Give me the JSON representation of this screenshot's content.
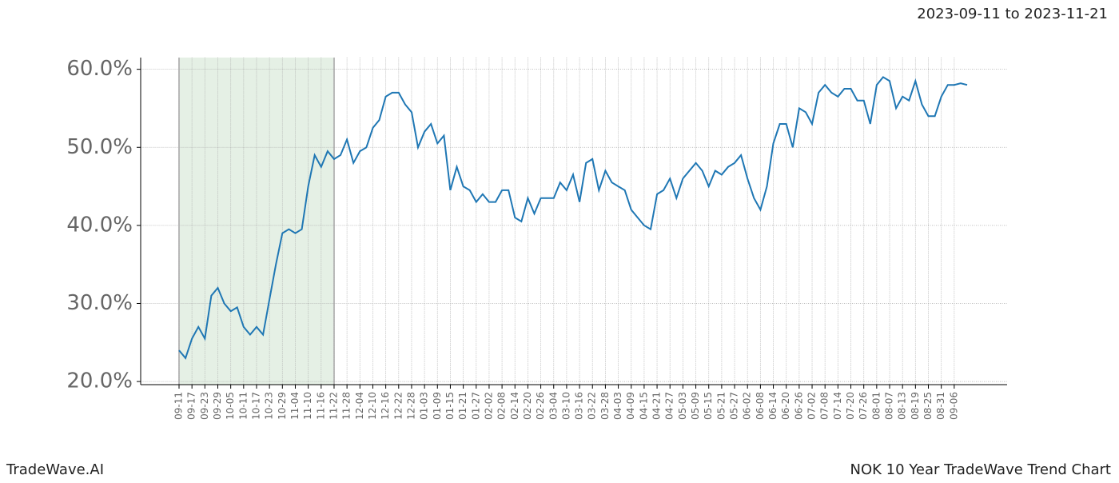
{
  "chart_data": {
    "type": "line",
    "title": "NOK 10 Year TradeWave Trend Chart",
    "subtitle": "2023-09-11 to 2023-11-21",
    "brand": "TradeWave.AI",
    "categories": [
      "09-11",
      null,
      "09-17",
      null,
      "09-23",
      null,
      "09-29",
      null,
      "10-05",
      null,
      "10-11",
      null,
      "10-17",
      null,
      "10-23",
      null,
      "10-29",
      null,
      "11-04",
      null,
      "11-10",
      null,
      "11-16",
      null,
      "11-22",
      null,
      "11-28",
      null,
      "12-04",
      null,
      "12-10",
      null,
      "12-16",
      null,
      "12-22",
      null,
      "12-28",
      null,
      "01-03",
      null,
      "01-09",
      null,
      "01-15",
      null,
      "01-21",
      null,
      "01-27",
      null,
      "02-02",
      null,
      "02-08",
      null,
      "02-14",
      null,
      "02-20",
      null,
      "02-26",
      null,
      "03-04",
      null,
      "03-10",
      null,
      "03-16",
      null,
      "03-22",
      null,
      "03-28",
      null,
      "04-03",
      null,
      "04-09",
      null,
      "04-15",
      null,
      "04-21",
      null,
      "04-27",
      null,
      "05-03",
      null,
      "05-09",
      null,
      "05-15",
      null,
      "05-21",
      null,
      "05-27",
      null,
      "06-02",
      null,
      "06-08",
      null,
      "06-14",
      null,
      "06-20",
      null,
      "06-26",
      null,
      "07-02",
      null,
      "07-08",
      null,
      "07-14",
      null,
      "07-20",
      null,
      "07-26",
      null,
      "08-01",
      null,
      "08-07",
      null,
      "08-13",
      null,
      "08-19",
      null,
      "08-25",
      null,
      "08-31",
      null,
      "09-06",
      null,
      null
    ],
    "series": [
      {
        "name": "NOK",
        "color": "#1f77b4",
        "values": [
          24,
          23,
          25.5,
          27,
          25.5,
          31,
          32,
          30,
          29,
          29.5,
          27,
          26,
          27,
          26,
          30.5,
          35,
          39,
          39.5,
          39,
          39.5,
          45,
          49,
          47.5,
          49.5,
          48.5,
          49,
          51,
          48,
          49.5,
          50,
          52.5,
          53.5,
          56.5,
          57,
          57,
          55.5,
          54.5,
          50,
          52,
          53,
          50.5,
          51.5,
          44.5,
          47.5,
          45,
          44.5,
          43,
          44,
          43,
          43,
          44.5,
          44.5,
          41,
          40.5,
          43.5,
          41.5,
          43.5,
          43.5,
          43.5,
          45.5,
          44.5,
          46.5,
          43,
          48,
          48.5,
          44.5,
          47,
          45.5,
          45,
          44.5,
          42,
          41,
          40,
          39.5,
          44,
          44.5,
          46,
          43.5,
          46,
          47,
          48,
          47,
          45,
          47,
          46.5,
          47.5,
          48,
          49,
          46,
          43.5,
          42,
          45,
          50.5,
          53,
          53,
          50,
          55,
          54.5,
          53,
          57,
          58,
          57,
          56.5,
          57.5,
          57.5,
          56,
          56,
          53,
          58,
          59,
          58.5,
          55,
          56.5,
          56,
          58.5,
          55.5,
          54,
          54,
          56.5,
          58,
          58,
          58.2,
          58
        ]
      }
    ],
    "ylim": [
      19.6,
      61.5
    ],
    "yticks": [
      {
        "value": 20,
        "label": "20.0%"
      },
      {
        "value": 30,
        "label": "30.0%"
      },
      {
        "value": 40,
        "label": "40.0%"
      },
      {
        "value": 50,
        "label": "50.0%"
      },
      {
        "value": 60,
        "label": "60.0%"
      }
    ],
    "highlight": [
      "09-11",
      "11-22"
    ],
    "highlight_color": "#e5f0e5",
    "grid": true
  }
}
